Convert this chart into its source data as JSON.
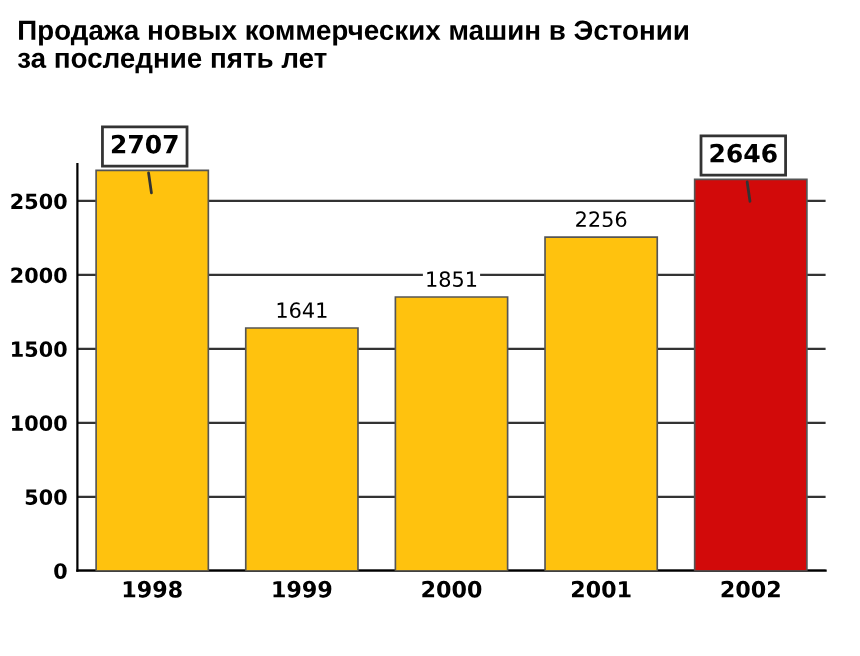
{
  "chart_data": {
    "type": "bar",
    "title": "Продажа новых коммерческих машин в Эстонии\nза последние пять лет",
    "categories": [
      "1998",
      "1999",
      "2000",
      "2001",
      "2002"
    ],
    "values": [
      2707,
      1641,
      1851,
      2256,
      2646
    ],
    "colors": [
      "#ffc20e",
      "#ffc20e",
      "#ffc20e",
      "#ffc20e",
      "#d20a0a"
    ],
    "value_labels": [
      null,
      "1641",
      "1851",
      "2256",
      null
    ],
    "annotations": [
      {
        "text": "2707",
        "x": "1998",
        "y": 2707
      },
      {
        "text": "2646",
        "x": "2002",
        "y": 2646
      }
    ],
    "ylim": [
      0,
      2750
    ],
    "yticks": [
      0,
      500,
      1000,
      1500,
      2000,
      2500
    ],
    "grid": "y"
  }
}
